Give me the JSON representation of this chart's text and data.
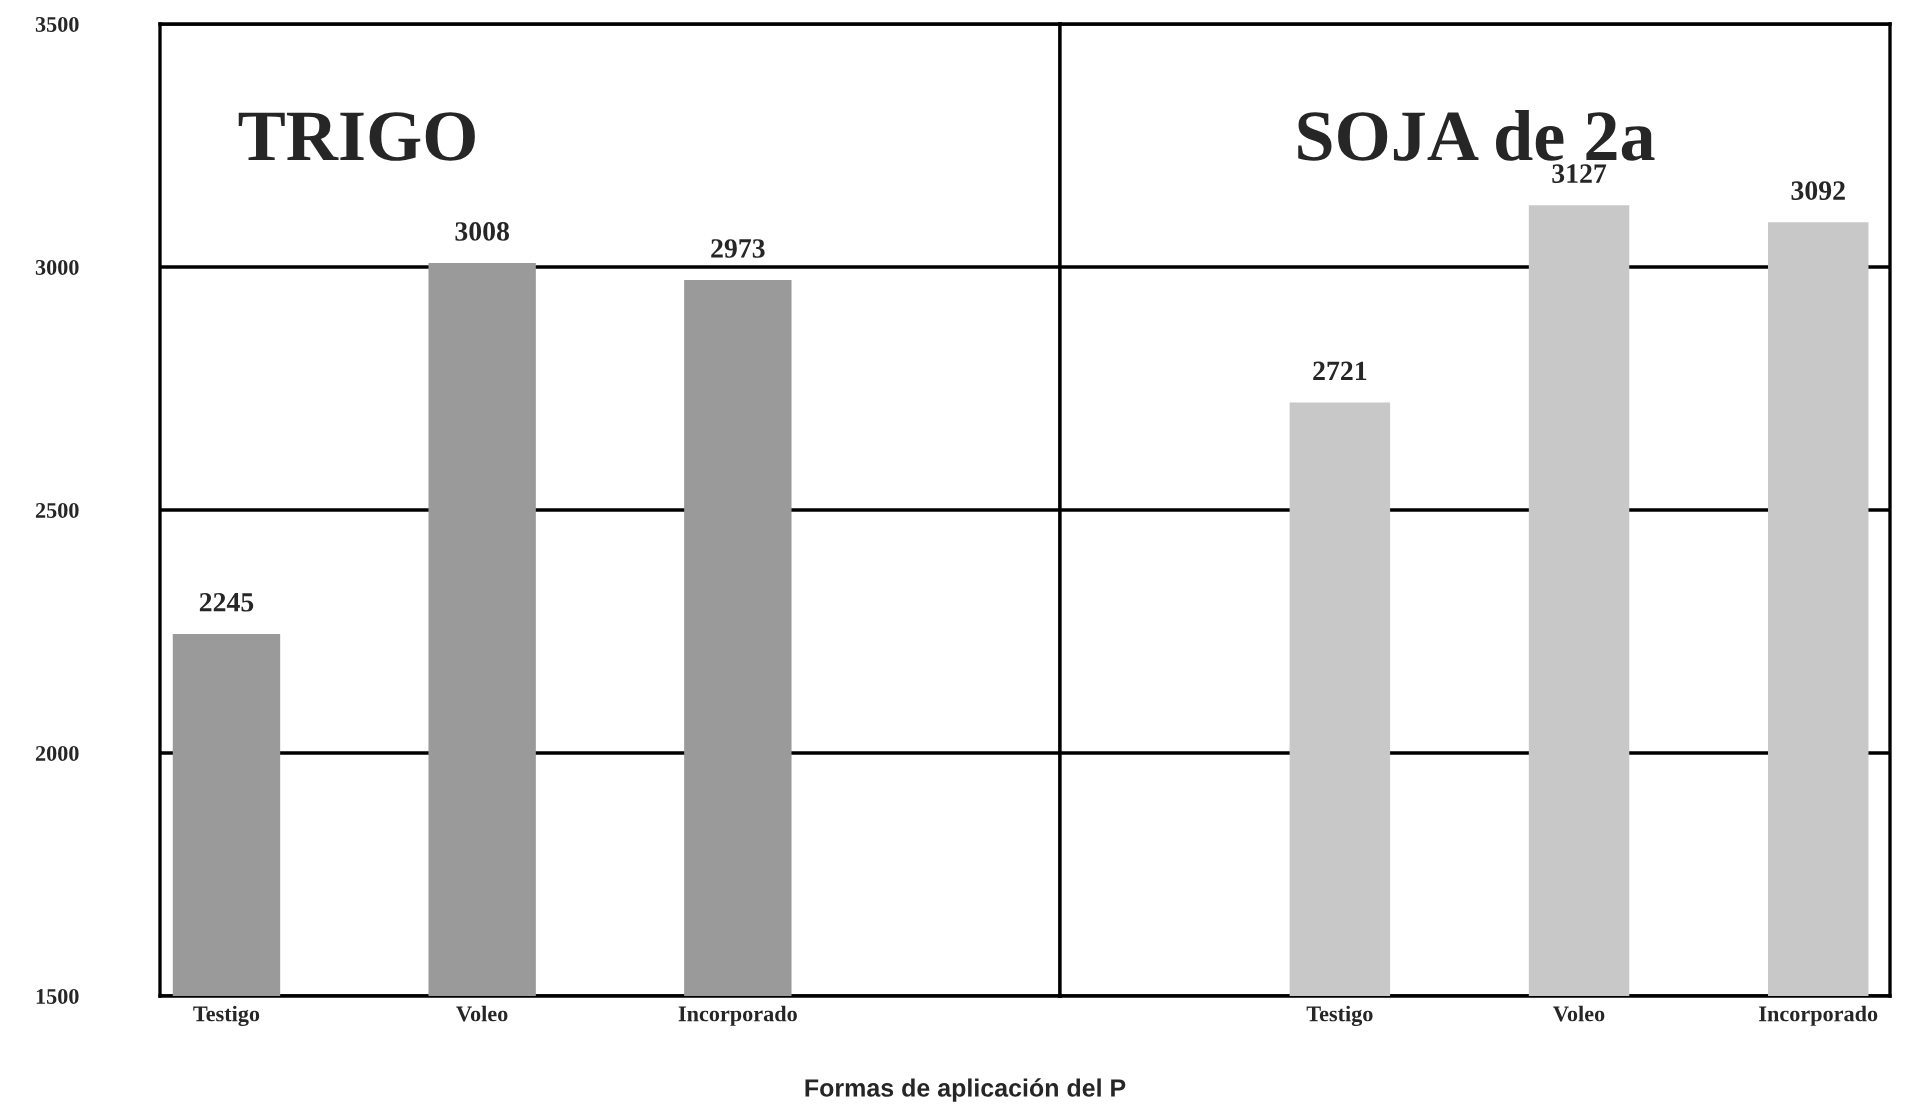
{
  "chart_data": [
    {
      "type": "bar",
      "title": "TRIGO",
      "xlabel": "Formas de aplicación del P",
      "categories": [
        "Testigo",
        "Voleo",
        "Incorporado"
      ],
      "series": [
        {
          "color": "#9a9a9a",
          "values": [
            2245,
            3008,
            2973
          ]
        }
      ],
      "ylim": [
        1500,
        3500
      ],
      "yticks": [
        1500,
        2000,
        2500,
        3000,
        3500
      ],
      "grid": "y",
      "data_labels": true,
      "legend": false
    },
    {
      "type": "bar",
      "title": "SOJA de 2a",
      "categories": [
        "Testigo",
        "Voleo",
        "Incorporado"
      ],
      "series": [
        {
          "color": "#c8c8c8",
          "values": [
            2721,
            3127,
            3092
          ]
        }
      ],
      "ylim": [
        1500,
        3500
      ],
      "yticks": [
        1500,
        2000,
        2500,
        3000,
        3500
      ],
      "grid": "y",
      "data_labels": true,
      "legend": false,
      "tick_labels": "x"
    }
  ]
}
